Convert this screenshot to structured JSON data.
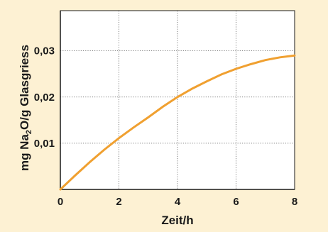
{
  "colors": {
    "background": "#fdf1d3",
    "plot_area": "#ffffff",
    "line": "#f0a030",
    "grid": "#555555",
    "text": "#1a1a1a"
  },
  "chart_data": {
    "type": "line",
    "title": "",
    "xlabel": "Zeit/h",
    "ylabel": {
      "part1": "mg Na",
      "subscript": "2",
      "part2": "O/g Glasgriess"
    },
    "xlim": [
      0,
      8
    ],
    "ylim": [
      0,
      0.0387
    ],
    "x_ticks": [
      0,
      2,
      4,
      6,
      8
    ],
    "x_tick_labels": [
      "0",
      "2",
      "4",
      "6",
      "8"
    ],
    "y_ticks": [
      0.01,
      0.02,
      0.03
    ],
    "y_tick_labels": [
      "0,01",
      "0,02",
      "0,03"
    ],
    "grid": true,
    "grid_style": "dotted",
    "legend": "none",
    "series": [
      {
        "x": [
          0,
          0.5,
          1,
          1.5,
          2,
          2.5,
          3,
          3.5,
          4,
          4.5,
          5,
          5.5,
          6,
          6.5,
          7,
          7.5,
          8
        ],
        "y": [
          0.0,
          0.003,
          0.0059,
          0.0086,
          0.0111,
          0.0134,
          0.0156,
          0.0179,
          0.02,
          0.0218,
          0.0234,
          0.0249,
          0.0261,
          0.0271,
          0.028,
          0.0286,
          0.029
        ]
      }
    ]
  }
}
